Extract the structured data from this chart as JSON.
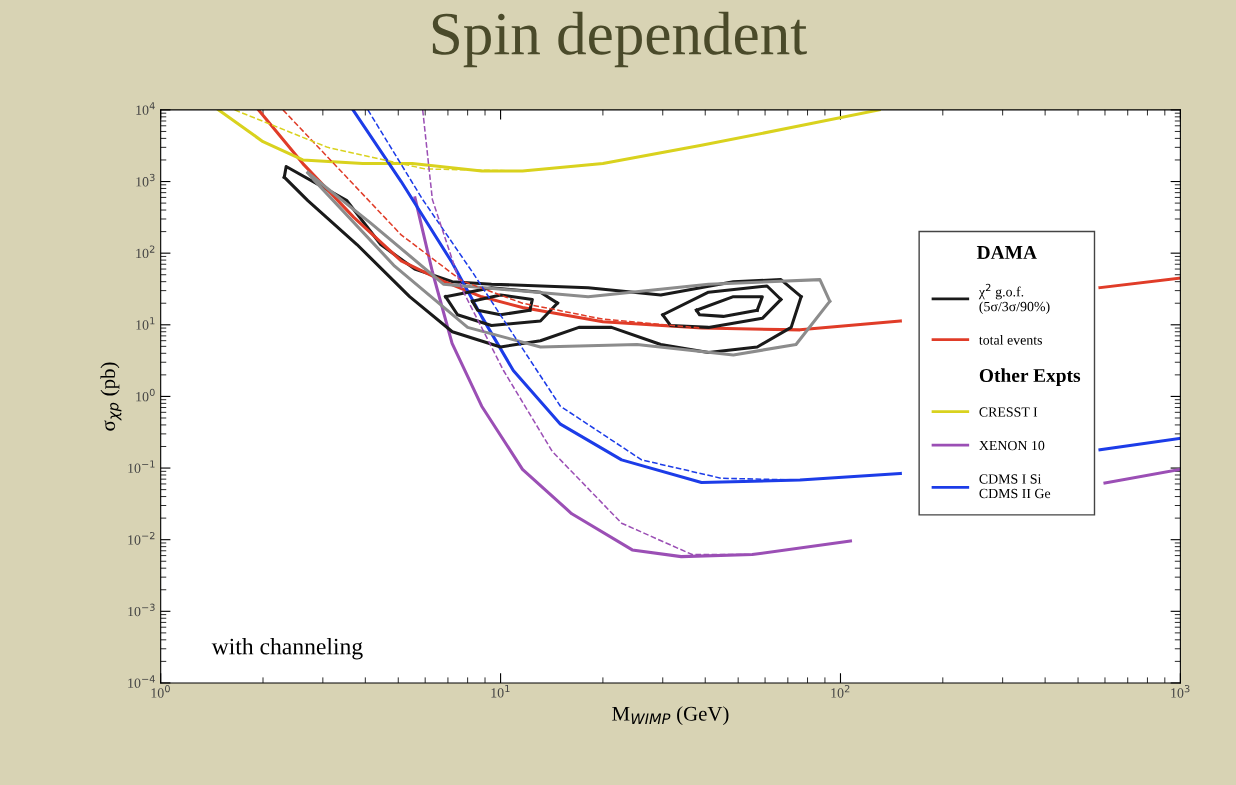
{
  "chart_data": {
    "type": "line",
    "title": "Spin dependent",
    "xlabel": "M$_{WIMP}$ (GeV)",
    "ylabel": "σ$_{χp}$ (pb)",
    "log": "xy",
    "legend": "right",
    "legend_title": "DAMA",
    "grid": false,
    "xlim": [
      1,
      1000
    ],
    "ylim": [
      0.0001,
      10000
    ],
    "xticks": [
      {
        "value": 1,
        "label": "10$^{0}$"
      },
      {
        "value": 10,
        "label": "10$^{1}$"
      },
      {
        "value": 100,
        "label": "10$^{2}$"
      },
      {
        "value": 1000,
        "label": "10$^{3}$"
      }
    ],
    "yticks": [
      {
        "value": 0.0001,
        "label": "10$^{−4}$"
      },
      {
        "value": 0.001,
        "label": "10$^{−3}$"
      },
      {
        "value": 0.01,
        "label": "10$^{−2}$"
      },
      {
        "value": 0.1,
        "label": "10$^{−1}$"
      },
      {
        "value": 1,
        "label": "10$^{0}$"
      },
      {
        "value": 10,
        "label": "10$^{1}$"
      },
      {
        "value": 100,
        "label": "10$^{2}$"
      },
      {
        "value": 1000,
        "label": "10$^{3}$"
      },
      {
        "value": 10000,
        "label": "10$^{4}$"
      }
    ],
    "annotations": [
      "with channeling",
      "Other Expts"
    ],
    "series": [
      {
        "name": "χ$^{2}$ g.o.f.\n(5σ/3σ/90%)",
        "color": "#1a1a1a",
        "line_style": "solid",
        "x": [
          2.31,
          2.34,
          3.53,
          4.44,
          5.59,
          7.21,
          9.4,
          18.1,
          29.6,
          48.4,
          66.8,
          76.6
        ],
        "values": [
          1150,
          1620,
          542,
          132,
          60,
          40,
          36.9,
          32.9,
          26.1,
          40,
          42.7,
          24.7
        ]
      },
      {
        "name": "total events",
        "color": "#e03c28",
        "line_style": "solid",
        "x": [
          1.94,
          2.62,
          3.7,
          5.1,
          6.75,
          8.8,
          11.6,
          20,
          39,
          76,
          150,
          295,
          580,
          1000
        ],
        "values": [
          10000,
          1780,
          316,
          78,
          41,
          24.6,
          17.4,
          11,
          9,
          8.5,
          11.3,
          null,
          33,
          45
        ]
      },
      {
        "name": "CRESST I",
        "color": "#d9d21e",
        "line_style": "solid",
        "x": [
          1.48,
          2,
          2.62,
          3.93,
          5.5,
          8.8,
          11.6,
          20,
          39,
          76,
          130
        ],
        "values": [
          10000,
          3600,
          2000,
          1780,
          1780,
          1400,
          1400,
          1780,
          3200,
          6000,
          10000
        ]
      },
      {
        "name": "XENON 10",
        "color": "#9b4fb5",
        "line_style": "solid",
        "x": [
          5.6,
          6.3,
          7.2,
          8.8,
          11.6,
          16.2,
          24.4,
          34,
          55,
          107,
          210,
          410,
          600,
          1000
        ],
        "values": [
          590,
          55,
          5.5,
          0.73,
          0.096,
          0.023,
          0.0072,
          0.0058,
          0.0062,
          0.0096,
          null,
          null,
          0.062,
          0.096
        ]
      },
      {
        "name": "CDMS I Si\nCDMS II Ge",
        "color": "#1c3ce8",
        "line_style": "solid",
        "x": [
          3.68,
          5.1,
          7.2,
          8.8,
          10.9,
          15,
          22.7,
          39,
          76,
          150,
          295,
          580,
          1000
        ],
        "values": [
          10000,
          1000,
          74,
          13,
          2.3,
          0.41,
          0.13,
          0.063,
          0.068,
          0.084,
          null,
          0.18,
          0.26
        ]
      },
      {
        "color": "#1a1a1a",
        "line_style": "solid",
        "x": [
          2.31,
          2.71,
          3.78,
          5.4,
          7.21,
          10,
          13.1,
          17,
          21.2,
          29.6,
          40.9,
          56.9,
          71.6,
          76.6
        ],
        "values": [
          1150,
          542,
          132,
          24.7,
          8.0,
          4.9,
          6.0,
          9.2,
          9.2,
          5.3,
          4.1,
          4.9,
          9.2,
          24.7
        ]
      },
      {
        "color": "#1a1a1a",
        "line_style": "solid",
        "x": [
          6.89,
          9.4,
          13.1,
          14.7
        ],
        "values": [
          24.7,
          32.9,
          28.5,
          20.1
        ]
      },
      {
        "color": "#1a1a1a",
        "line_style": "solid",
        "x": [
          6.89,
          7.47,
          9.4,
          13.1,
          14.7
        ],
        "values": [
          24.7,
          13.8,
          9.8,
          11.3,
          20.1
        ]
      },
      {
        "color": "#1a1a1a",
        "line_style": "solid",
        "x": [
          8.26,
          10,
          12.4,
          12.2
        ],
        "values": [
          21.3,
          26.1,
          22.6,
          16
        ]
      },
      {
        "color": "#1a1a1a",
        "line_style": "solid",
        "x": [
          8.26,
          8.56,
          10,
          12.2
        ],
        "values": [
          21.3,
          16,
          13.8,
          16
        ]
      },
      {
        "color": "#1a1a1a",
        "line_style": "solid",
        "x": [
          30,
          40.9,
          60.8,
          66.8
        ],
        "values": [
          13.8,
          28.5,
          34.8,
          22.6
        ]
      },
      {
        "color": "#1a1a1a",
        "line_style": "solid",
        "x": [
          30,
          31.6,
          40.9,
          58.9,
          66.8
        ],
        "values": [
          13.8,
          9.8,
          9.2,
          12.3,
          22.6
        ]
      },
      {
        "color": "#1a1a1a",
        "line_style": "solid",
        "x": [
          37.7,
          48.4,
          58.9,
          56.9
        ],
        "values": [
          16,
          24.7,
          24.7,
          16
        ]
      },
      {
        "color": "#1a1a1a",
        "line_style": "solid",
        "x": [
          37.7,
          38.5,
          45.2,
          56.9
        ],
        "values": [
          16,
          13.8,
          13.1,
          16
        ]
      },
      {
        "color": "#8c8c8c",
        "line_style": "solid",
        "x": [
          2.71,
          4.15,
          6.79,
          18.1,
          40.9,
          87,
          93
        ],
        "values": [
          1325,
          263,
          36.9,
          24.7,
          36.9,
          42.7,
          21.3
        ]
      },
      {
        "color": "#8c8c8c",
        "line_style": "solid",
        "x": [
          2.71,
          2.81,
          4.88,
          8.0,
          13.1,
          25.2,
          48.4,
          74,
          93
        ],
        "values": [
          1325,
          1080,
          65.8,
          9.2,
          4.9,
          5.3,
          3.8,
          5.3,
          21.3
        ]
      },
      {
        "color": "#e03c28",
        "line_style": "dashed",
        "x": [
          2.29,
          3.44,
          5.1,
          7.7,
          11.6,
          20,
          39
        ],
        "values": [
          10000,
          1300,
          180,
          41,
          20,
          12,
          9
        ]
      },
      {
        "color": "#d9d21e",
        "line_style": "dashed",
        "x": [
          1.65,
          3.1,
          6.0,
          11.6
        ],
        "values": [
          10000,
          3000,
          1500,
          1400
        ]
      },
      {
        "color": "#1c3ce8",
        "line_style": "dashed",
        "x": [
          4.07,
          5.9,
          8.25,
          10.9,
          15,
          26,
          44.6,
          76
        ],
        "values": [
          10000,
          560,
          55,
          7.3,
          0.73,
          0.13,
          0.072,
          0.068
        ]
      },
      {
        "color": "#9b4fb5",
        "line_style": "dashed",
        "x": [
          5.9,
          6.3,
          7.7,
          10.2,
          14.2,
          22.7,
          36.6,
          55
        ],
        "values": [
          10000,
          560,
          31.6,
          2.3,
          0.17,
          0.017,
          0.0062,
          0.0062
        ]
      }
    ]
  }
}
